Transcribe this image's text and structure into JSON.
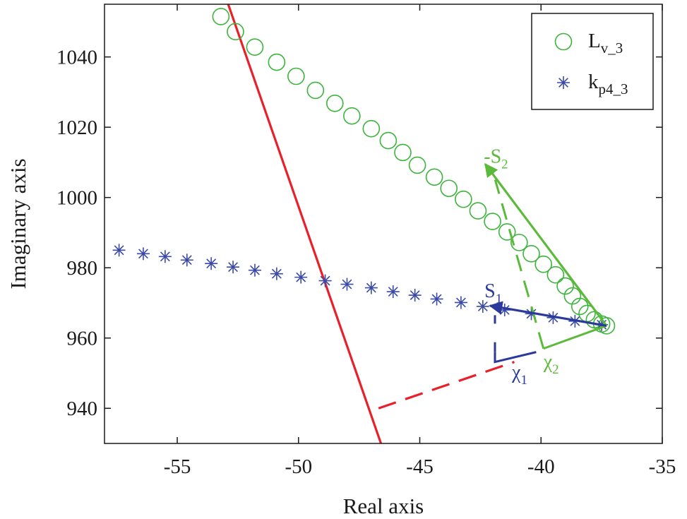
{
  "chart_data": {
    "type": "scatter",
    "title": "",
    "xlabel": "Real axis",
    "ylabel": "Imaginary axis",
    "xlim": [
      -58,
      -35
    ],
    "ylim": [
      930,
      1055
    ],
    "xticks": [
      -55,
      -50,
      -45,
      -40,
      -35
    ],
    "yticks": [
      940,
      960,
      980,
      1000,
      1020,
      1040
    ],
    "xtick_labels": [
      "-55",
      "-50",
      "-45",
      "-40",
      "-35"
    ],
    "ytick_labels": [
      "940",
      "960",
      "980",
      "1000",
      "1020",
      "1040"
    ],
    "legend": {
      "position": "top-right",
      "entries": [
        {
          "marker": "circle",
          "label": "L",
          "sub": "v_3"
        },
        {
          "marker": "asterisk",
          "label": "k",
          "sub": "p4_3"
        }
      ]
    },
    "series": [
      {
        "name": "L_v_3",
        "marker": "circle",
        "color": "#3cb43c",
        "x": [
          -53.2,
          -52.6,
          -51.8,
          -50.9,
          -50.1,
          -49.3,
          -48.5,
          -47.8,
          -47.0,
          -46.3,
          -45.7,
          -45.1,
          -44.4,
          -43.8,
          -43.2,
          -42.6,
          -42.0,
          -41.4,
          -40.9,
          -40.4,
          -39.9,
          -39.4,
          -39.0,
          -38.7,
          -38.4,
          -38.1,
          -37.8,
          -37.5,
          -37.3
        ],
        "y": [
          1051.5,
          1047.2,
          1042.8,
          1038.5,
          1034.5,
          1030.5,
          1026.8,
          1023.2,
          1019.6,
          1016.2,
          1012.8,
          1009.2,
          1005.8,
          1002.6,
          999.5,
          996.2,
          993.2,
          990.2,
          987.2,
          984.0,
          981.0,
          978.0,
          974.8,
          972.0,
          969.0,
          967.0,
          965.2,
          964.0,
          963.5
        ]
      },
      {
        "name": "k_p4_3",
        "marker": "asterisk",
        "color": "#3a4aa6",
        "x": [
          -57.4,
          -56.4,
          -55.5,
          -54.6,
          -53.6,
          -52.7,
          -51.8,
          -50.9,
          -49.9,
          -48.9,
          -48.0,
          -47.0,
          -46.1,
          -45.2,
          -44.3,
          -43.3,
          -42.4,
          -41.5,
          -40.4,
          -39.5,
          -38.6,
          -37.5
        ],
        "y": [
          985.0,
          984.0,
          983.2,
          982.2,
          981.2,
          980.2,
          979.3,
          978.3,
          977.3,
          976.3,
          975.3,
          974.3,
          973.2,
          972.2,
          971.1,
          970.1,
          969.0,
          968.0,
          966.9,
          965.8,
          964.8,
          963.8
        ]
      }
    ],
    "lines": [
      {
        "name": "stability-boundary",
        "color": "#e8202a",
        "style": "solid",
        "x": [
          -52.9,
          -46.6
        ],
        "y": [
          1055,
          930
        ]
      },
      {
        "name": "distance-projection",
        "color": "#e8202a",
        "style": "dashed",
        "x": [
          -46.7,
          -41.1
        ],
        "y": [
          940.0,
          953.2
        ]
      }
    ],
    "vectors": [
      {
        "name": "vector-minus-s2",
        "color": "#5cba3a",
        "from": [
          -37.3,
          963.5
        ],
        "to": [
          -42.3,
          1009.5
        ],
        "label": "-S",
        "sub": "2"
      },
      {
        "name": "vector-s1",
        "color": "#2b3a9a",
        "from": [
          -37.3,
          963.5
        ],
        "to": [
          -42.1,
          969.2
        ],
        "label": "S",
        "sub": "1"
      }
    ],
    "projections": [
      {
        "name": "projection-s2",
        "color": "#5cba3a",
        "label": "χ",
        "sub": "2"
      },
      {
        "name": "projection-s1",
        "color": "#2b3a9a",
        "label": "χ",
        "sub": "1"
      }
    ]
  },
  "colors": {
    "axis": "#1a1a1a",
    "green": "#3cb43c",
    "blue": "#3a4aa6",
    "red": "#e8202a"
  }
}
